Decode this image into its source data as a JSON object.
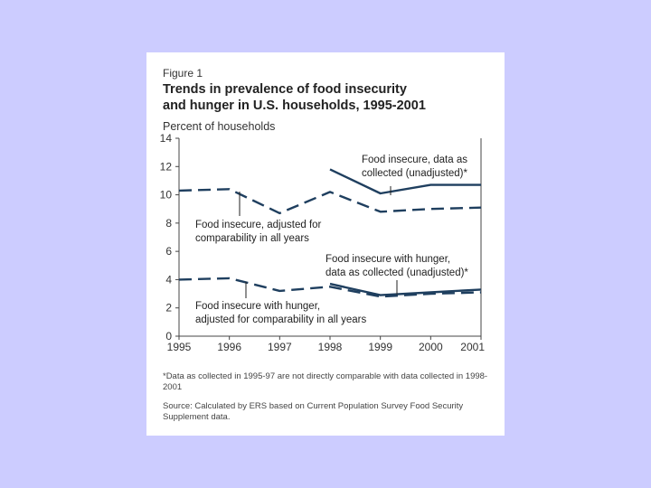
{
  "figure": {
    "label": "Figure 1",
    "title_line1": "Trends in prevalence of food insecurity",
    "title_line2": "and hunger in U.S. households, 1995-2001",
    "footnote": "*Data as collected in 1995-97 are not directly comparable with data collected in 1998-2001",
    "source": "Source: Calculated by ERS based on Current Population Survey Food Security Supplement data."
  },
  "colors": {
    "background": "#ccccff",
    "card": "#ffffff",
    "line": "#1f3f5f"
  },
  "chart_data": {
    "type": "line",
    "title": "Trends in prevalence of food insecurity and hunger in U.S. households, 1995-2001",
    "xlabel": "",
    "ylabel": "Percent of households",
    "x_ticks": [
      "1995",
      "1996",
      "1997",
      "1998",
      "1999",
      "2000",
      "2001"
    ],
    "y_ticks": [
      "0",
      "2",
      "4",
      "6",
      "8",
      "10",
      "12",
      "14"
    ],
    "xlim": [
      1995,
      2001
    ],
    "ylim": [
      0,
      14
    ],
    "grid": false,
    "series": [
      {
        "name": "Food insecure, data as collected (unadjusted)*",
        "style": "solid",
        "x": [
          1998,
          1999,
          2000,
          2001
        ],
        "values": [
          11.8,
          10.1,
          10.7,
          10.7
        ]
      },
      {
        "name": "Food insecure, adjusted for comparability in all years",
        "style": "dashed",
        "x": [
          1995,
          1996,
          1997,
          1998,
          1999,
          2000,
          2001
        ],
        "values": [
          10.3,
          10.4,
          8.7,
          10.2,
          8.8,
          9.0,
          9.1
        ]
      },
      {
        "name": "Food insecure with hunger, data as collected (unadjusted)*",
        "style": "solid",
        "x": [
          1998,
          1999,
          2000,
          2001
        ],
        "values": [
          3.7,
          2.9,
          3.1,
          3.3
        ]
      },
      {
        "name": "Food insecure with hunger, adjusted for comparability in all years",
        "style": "dashed",
        "x": [
          1995,
          1996,
          1997,
          1998,
          1999,
          2000,
          2001
        ],
        "values": [
          4.0,
          4.1,
          3.2,
          3.5,
          2.8,
          3.0,
          3.1
        ]
      }
    ],
    "annotations": [
      {
        "series": 0,
        "line1": "Food insecure, data as",
        "line2": "collected (unadjusted)*"
      },
      {
        "series": 1,
        "line1": "Food insecure, adjusted for",
        "line2": "comparability in all years"
      },
      {
        "series": 2,
        "line1": "Food insecure with hunger,",
        "line2": "data as collected (unadjusted)*"
      },
      {
        "series": 3,
        "line1": "Food insecure with hunger,",
        "line2": "adjusted for comparability in all years"
      }
    ]
  }
}
